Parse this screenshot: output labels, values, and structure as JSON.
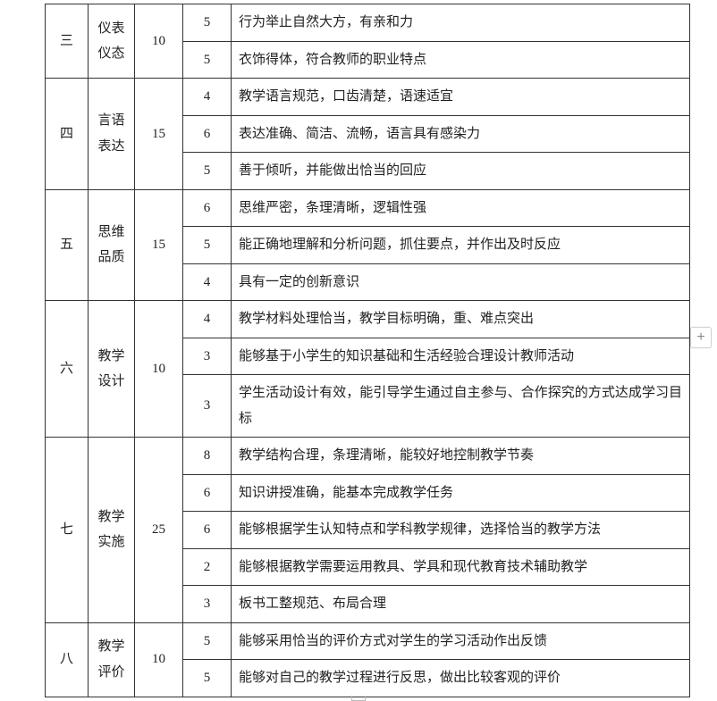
{
  "table": {
    "sections": [
      {
        "idx": "三",
        "category": "仪表仪态",
        "total": "10",
        "rows": [
          {
            "score": "5",
            "desc": "行为举止自然大方，有亲和力"
          },
          {
            "score": "5",
            "desc": "衣饰得体，符合教师的职业特点"
          }
        ]
      },
      {
        "idx": "四",
        "category": "言语表达",
        "total": "15",
        "rows": [
          {
            "score": "4",
            "desc": "教学语言规范，口齿清楚，语速适宜"
          },
          {
            "score": "6",
            "desc": "表达准确、简洁、流畅，语言具有感染力"
          },
          {
            "score": "5",
            "desc": "善于倾听，并能做出恰当的回应"
          }
        ]
      },
      {
        "idx": "五",
        "category": "思维品质",
        "total": "15",
        "rows": [
          {
            "score": "6",
            "desc": "思维严密，条理清晰，逻辑性强"
          },
          {
            "score": "5",
            "desc": "能正确地理解和分析问题，抓住要点，并作出及时反应"
          },
          {
            "score": "4",
            "desc": "具有一定的创新意识"
          }
        ]
      },
      {
        "idx": "六",
        "category": "教学设计",
        "total": "10",
        "rows": [
          {
            "score": "4",
            "desc": "教学材料处理恰当，教学目标明确，重、难点突出"
          },
          {
            "score": "3",
            "desc": "能够基于小学生的知识基础和生活经验合理设计教师活动"
          },
          {
            "score": "3",
            "desc": "学生活动设计有效，能引导学生通过自主参与、合作探究的方式达成学习目标"
          }
        ]
      },
      {
        "idx": "七",
        "category": "教学实施",
        "total": "25",
        "rows": [
          {
            "score": "8",
            "desc": "教学结构合理，条理清晰，能较好地控制教学节奏"
          },
          {
            "score": "6",
            "desc": "知识讲授准确，能基本完成教学任务"
          },
          {
            "score": "6",
            "desc": "能够根据学生认知特点和学科教学规律，选择恰当的教学方法"
          },
          {
            "score": "2",
            "desc": "能够根据教学需要运用教具、学具和现代教育技术辅助教学"
          },
          {
            "score": "3",
            "desc": "板书工整规范、布局合理"
          }
        ]
      },
      {
        "idx": "八",
        "category": "教学评价",
        "total": "10",
        "rows": [
          {
            "score": "5",
            "desc": "能够采用恰当的评价方式对学生的学习活动作出反馈"
          },
          {
            "score": "5",
            "desc": "能够对自己的教学过程进行反思，做出比较客观的评价"
          }
        ]
      }
    ]
  },
  "widgets": {
    "plus_label": "+"
  }
}
